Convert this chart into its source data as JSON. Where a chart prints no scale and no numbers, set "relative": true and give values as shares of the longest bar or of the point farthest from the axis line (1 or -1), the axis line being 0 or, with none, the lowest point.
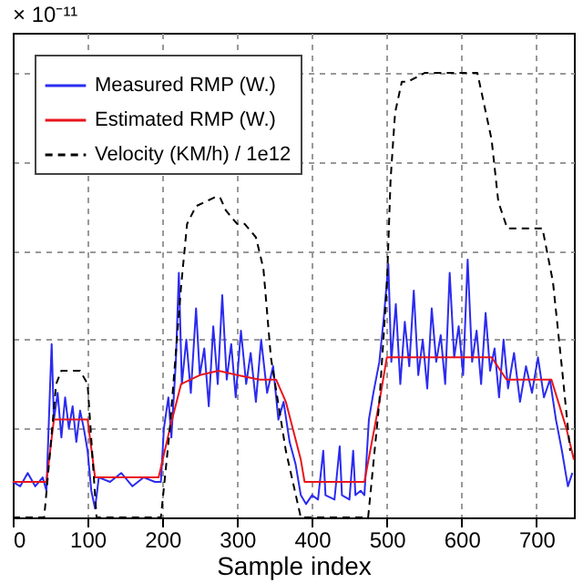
{
  "chart_data": {
    "type": "line",
    "xlabel": "Sample index",
    "annotations": [
      "× 10⁻¹¹"
    ],
    "relative": true,
    "grid": true,
    "legend": "top left",
    "xlim": [
      0,
      750
    ],
    "xticks": [
      0,
      100,
      200,
      300,
      400,
      500,
      600,
      700
    ],
    "series": [
      {
        "name": "Measured RMP (W.)",
        "color": "#2b2bf0",
        "line_style": "solid",
        "x": [
          0,
          10,
          20,
          30,
          40,
          45,
          50,
          52,
          55,
          60,
          65,
          70,
          75,
          80,
          85,
          90,
          95,
          100,
          105,
          110,
          115,
          130,
          145,
          160,
          175,
          190,
          198,
          202,
          208,
          212,
          218,
          222,
          226,
          232,
          238,
          245,
          250,
          256,
          262,
          268,
          274,
          280,
          286,
          292,
          298,
          305,
          312,
          318,
          325,
          332,
          340,
          348,
          355,
          362,
          370,
          378,
          385,
          392,
          400,
          408,
          415,
          418,
          430,
          437,
          440,
          450,
          455,
          458,
          465,
          470,
          476,
          482,
          490,
          496,
          502,
          506,
          512,
          518,
          524,
          530,
          536,
          542,
          548,
          554,
          560,
          566,
          572,
          578,
          584,
          590,
          596,
          602,
          608,
          614,
          620,
          626,
          632,
          638,
          644,
          650,
          656,
          662,
          670,
          678,
          686,
          694,
          702,
          710,
          718,
          726,
          734,
          742,
          748
        ],
        "values": [
          0.08,
          0.07,
          0.1,
          0.07,
          0.09,
          0.06,
          0.3,
          0.39,
          0.22,
          0.28,
          0.18,
          0.27,
          0.2,
          0.25,
          0.17,
          0.24,
          0.2,
          0.15,
          0.06,
          0.02,
          0.09,
          0.08,
          0.1,
          0.07,
          0.09,
          0.08,
          0.08,
          0.2,
          0.27,
          0.18,
          0.35,
          0.55,
          0.3,
          0.4,
          0.28,
          0.47,
          0.32,
          0.38,
          0.25,
          0.43,
          0.3,
          0.5,
          0.31,
          0.39,
          0.27,
          0.42,
          0.3,
          0.37,
          0.26,
          0.4,
          0.28,
          0.34,
          0.22,
          0.26,
          0.17,
          0.12,
          0.05,
          0.03,
          0.05,
          0.04,
          0.15,
          0.05,
          0.04,
          0.16,
          0.05,
          0.04,
          0.15,
          0.05,
          0.06,
          0.05,
          0.22,
          0.28,
          0.35,
          0.45,
          0.57,
          0.35,
          0.48,
          0.3,
          0.44,
          0.34,
          0.51,
          0.32,
          0.4,
          0.29,
          0.47,
          0.35,
          0.41,
          0.3,
          0.55,
          0.36,
          0.43,
          0.32,
          0.58,
          0.35,
          0.42,
          0.3,
          0.46,
          0.33,
          0.38,
          0.27,
          0.4,
          0.29,
          0.37,
          0.26,
          0.34,
          0.28,
          0.36,
          0.27,
          0.31,
          0.22,
          0.15,
          0.07,
          0.1
        ]
      },
      {
        "name": "Estimated RMP (W.)",
        "color": "#e8141c",
        "line_style": "solid",
        "x": [
          0,
          45,
          55,
          100,
          110,
          195,
          210,
          225,
          250,
          275,
          300,
          330,
          352,
          365,
          385,
          390,
          470,
          490,
          500,
          510,
          600,
          640,
          660,
          700,
          720,
          740,
          750
        ],
        "values": [
          0.08,
          0.08,
          0.22,
          0.22,
          0.09,
          0.09,
          0.2,
          0.3,
          0.32,
          0.33,
          0.32,
          0.31,
          0.31,
          0.26,
          0.13,
          0.08,
          0.08,
          0.26,
          0.36,
          0.36,
          0.36,
          0.36,
          0.31,
          0.31,
          0.31,
          0.2,
          0.13
        ]
      },
      {
        "name": "Velocity (KM/h) / 1e12",
        "color": "#000000",
        "line_style": "dashed",
        "x": [
          0,
          42,
          50,
          58,
          65,
          90,
          100,
          112,
          198,
          210,
          225,
          233,
          245,
          270,
          277,
          285,
          300,
          310,
          325,
          335,
          345,
          365,
          385,
          475,
          490,
          500,
          505,
          511,
          520,
          528,
          551,
          621,
          640,
          649,
          661,
          708,
          722,
          735,
          745
        ],
        "values": [
          0,
          0,
          0.15,
          0.3,
          0.33,
          0.33,
          0.3,
          0,
          0,
          0.2,
          0.52,
          0.66,
          0.7,
          0.72,
          0.72,
          0.69,
          0.66,
          0.66,
          0.63,
          0.56,
          0.36,
          0.15,
          0,
          0,
          0.26,
          0.52,
          0.76,
          0.91,
          0.98,
          0.98,
          1,
          1,
          0.85,
          0.71,
          0.65,
          0.65,
          0.53,
          0.32,
          0.15
        ]
      }
    ]
  }
}
